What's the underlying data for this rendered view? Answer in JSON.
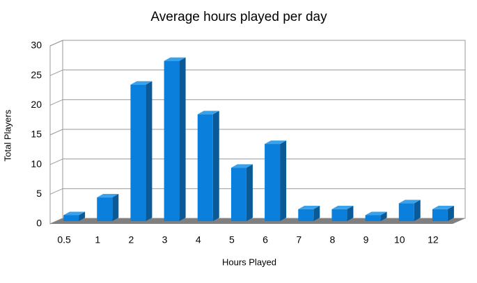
{
  "chart_data": {
    "type": "bar",
    "title": "Average hours played per day",
    "x_label": "Hours Played",
    "y_label": "Total Players",
    "categories": [
      "0.5",
      "1",
      "2",
      "3",
      "4",
      "5",
      "6",
      "7",
      "8",
      "9",
      "10",
      "12"
    ],
    "values": [
      1,
      4,
      23,
      27,
      18,
      9,
      13,
      2,
      2,
      1,
      3,
      2
    ],
    "color": "#0a80dc",
    "ylim": [
      0,
      30
    ],
    "yticks": [
      0,
      5,
      10,
      15,
      20,
      25,
      30
    ],
    "grid": true
  }
}
